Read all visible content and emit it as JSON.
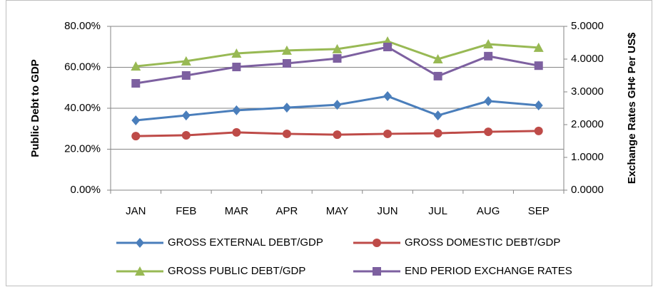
{
  "chart_data": {
    "type": "line",
    "y_label": "Public Debt to GDP",
    "y2_label": "Exchange Rates GH¢ Per US$",
    "categories": [
      "JAN",
      "FEB",
      "MAR",
      "APR",
      "MAY",
      "JUN",
      "JUL",
      "AUG",
      "SEP"
    ],
    "series": [
      {
        "name": "GROSS EXTERNAL DEBT/GDP",
        "color": "#4a7ebb",
        "marker": "diamond",
        "values": [
          34.1,
          36.5,
          39.0,
          40.3,
          41.7,
          45.9,
          36.5,
          43.5,
          41.4
        ]
      },
      {
        "name": "GROSS DOMESTIC DEBT/GDP",
        "color": "#be4b48",
        "marker": "circle",
        "values": [
          26.4,
          26.8,
          28.2,
          27.5,
          27.1,
          27.5,
          27.8,
          28.5,
          28.9
        ]
      },
      {
        "name": "GROSS PUBLIC DEBT/GDP",
        "color": "#98b954",
        "marker": "triangle",
        "values": [
          60.5,
          63.0,
          66.8,
          68.2,
          68.9,
          72.7,
          64.0,
          71.3,
          69.6
        ]
      },
      {
        "name": "END PERIOD EXCHANGE RATES",
        "color": "#7d60a0",
        "marker": "square",
        "axis": "y2",
        "values": [
          3.26,
          3.5,
          3.76,
          3.87,
          4.02,
          4.37,
          3.48,
          4.09,
          3.8
        ]
      }
    ],
    "ylim": [
      0,
      80
    ],
    "yticks": [
      {
        "value": 0,
        "label": "0.00%"
      },
      {
        "value": 20,
        "label": "20.00%"
      },
      {
        "value": 40,
        "label": "40.00%"
      },
      {
        "value": 60,
        "label": "60.00%"
      },
      {
        "value": 80,
        "label": "80.00%"
      }
    ],
    "y2lim": [
      0,
      5
    ],
    "y2ticks": [
      {
        "value": 0,
        "label": "0.0000"
      },
      {
        "value": 1,
        "label": "1.0000"
      },
      {
        "value": 2,
        "label": "2.0000"
      },
      {
        "value": 3,
        "label": "3.0000"
      },
      {
        "value": 4,
        "label": "4.0000"
      },
      {
        "value": 5,
        "label": "5.0000"
      }
    ],
    "grid": true,
    "legend": "bottom"
  }
}
